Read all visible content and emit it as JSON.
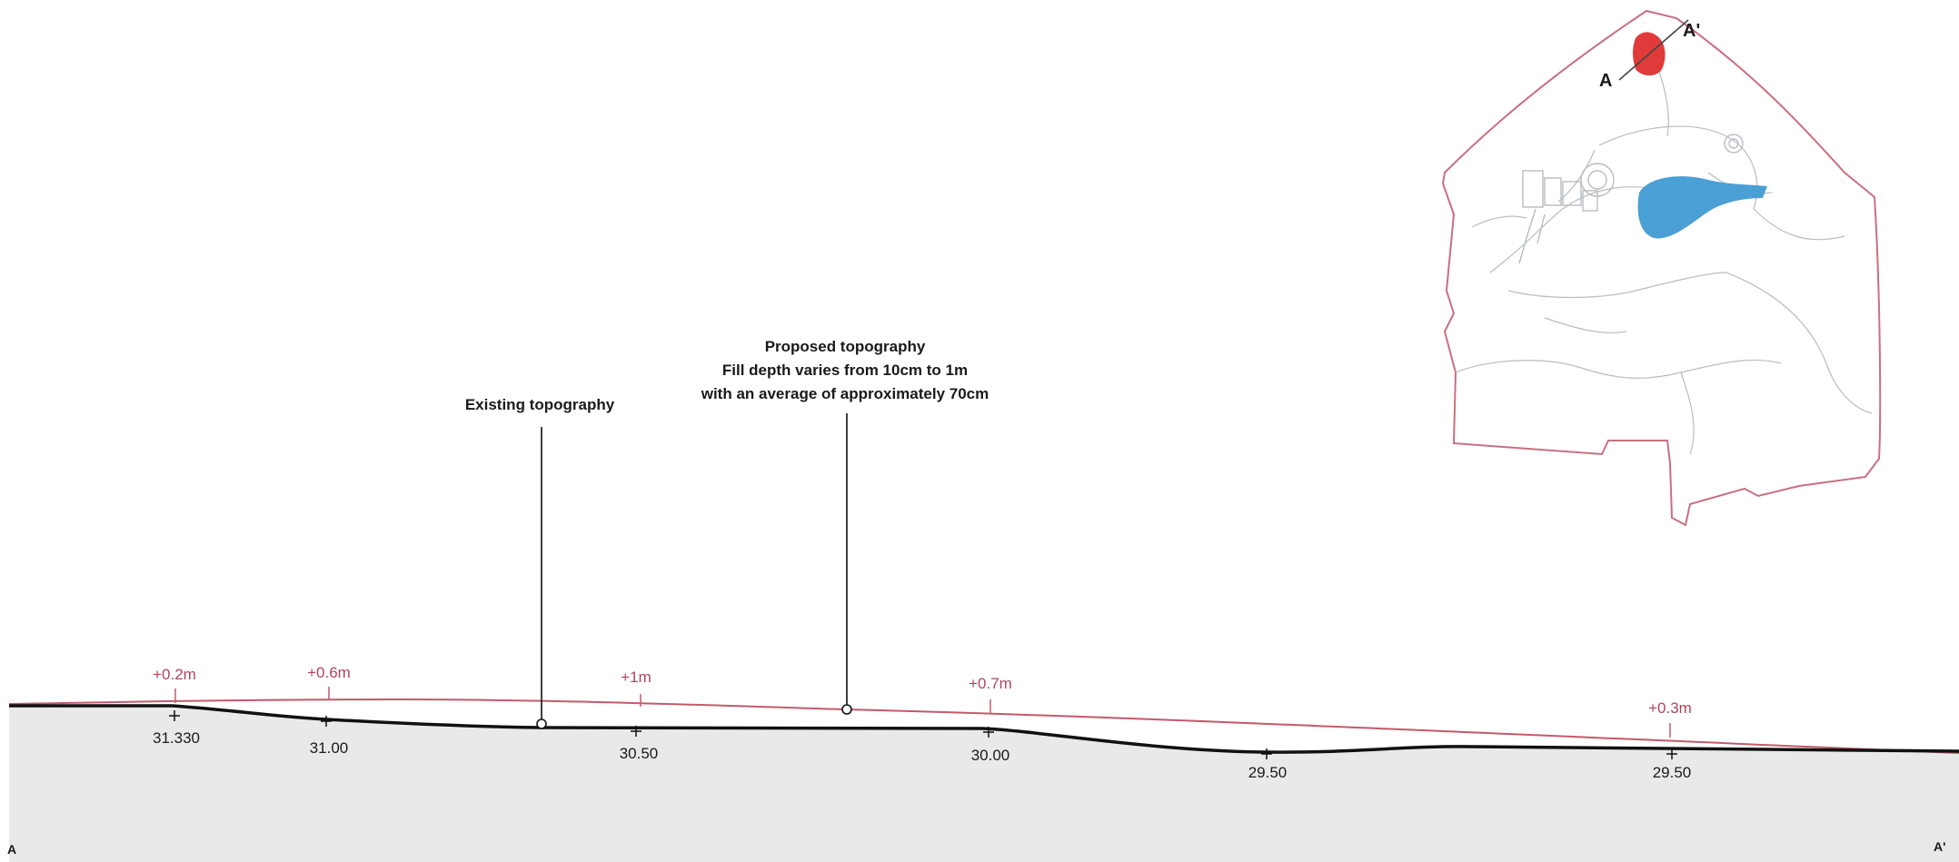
{
  "colors": {
    "ground_fill": "#e9e9e9",
    "existing_line": "#111111",
    "proposed_line": "#c25a6c",
    "fill_label": "#b0455a",
    "site_boundary": "#c9707f",
    "section_site": "#e03a3a",
    "water": "#4a9fd4",
    "map_detail": "#b8bdc2"
  },
  "annotations": {
    "existing": "Existing topography",
    "proposed_title": "Proposed topography",
    "proposed_line2": "Fill depth varies from 10cm to 1m",
    "proposed_line3": "with an average of approximately 70cm"
  },
  "section_ends": {
    "start": "A",
    "end": "A'"
  },
  "fill_depths": [
    "+0.2m",
    "+0.6m",
    "+1m",
    "+0.7m",
    "+0.3m"
  ],
  "spot_elevations": [
    "31.330",
    "31.00",
    "30.50",
    "30.00",
    "29.50",
    "29.50"
  ],
  "key_plan": {
    "label_a": "A",
    "label_a_prime": "A'",
    "icons": [
      "site-boundary-outline",
      "pond",
      "section-area"
    ]
  }
}
